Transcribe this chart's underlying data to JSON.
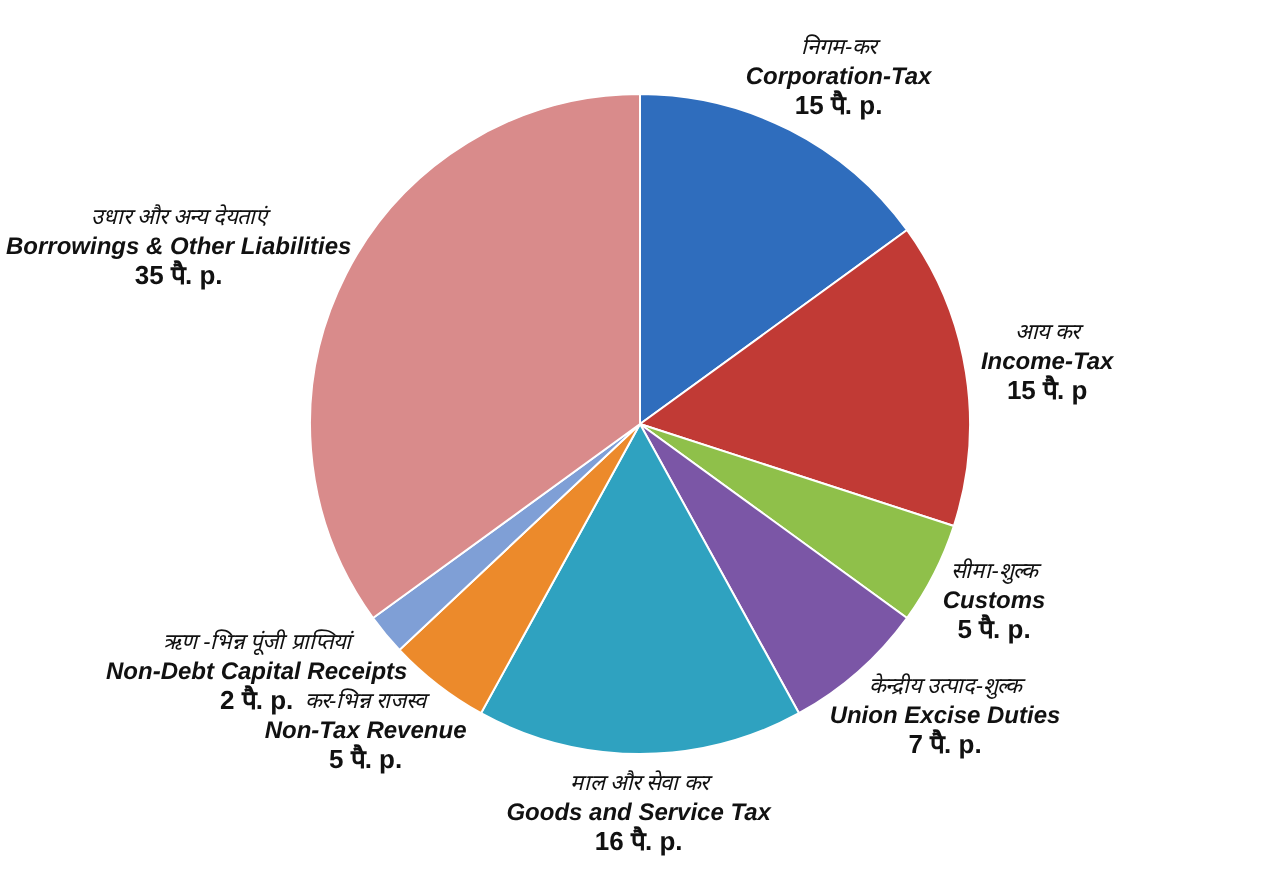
{
  "chart_data": {
    "type": "pie",
    "categories": [
      "निगम-कर\nCorporation-Tax",
      "आय कर\nIncome-Tax",
      "सीमा-शुल्क\nCustoms",
      "केन्द्रीय उत्पाद-शुल्क\nUnion Excise Duties",
      "माल और सेवा कर\nGoods and Service Tax",
      "कर-भिन्न राजस्व\nNon-Tax Revenue",
      "ऋण -भिन्न पूंजी प्राप्तियां\nNon-Debt Capital Receipts",
      "उधार और अन्य देयताएं\nBorrowings & Other Liabilities"
    ],
    "values": [
      15,
      15,
      5,
      7,
      16,
      5,
      2,
      35
    ],
    "colors": [
      "#2f6dbd",
      "#c13a35",
      "#8fc04a",
      "#7b56a6",
      "#2fa2c0",
      "#ec8a2b",
      "#7f9fd6",
      "#d98b8b"
    ],
    "value_labels": [
      "15 पै. p.",
      "15 पै. p",
      "5 पै. p.",
      "7 पै. p.",
      "16 पै. p.",
      "5 पै. p.",
      "2 पै. p.",
      "35 पै. p."
    ]
  }
}
